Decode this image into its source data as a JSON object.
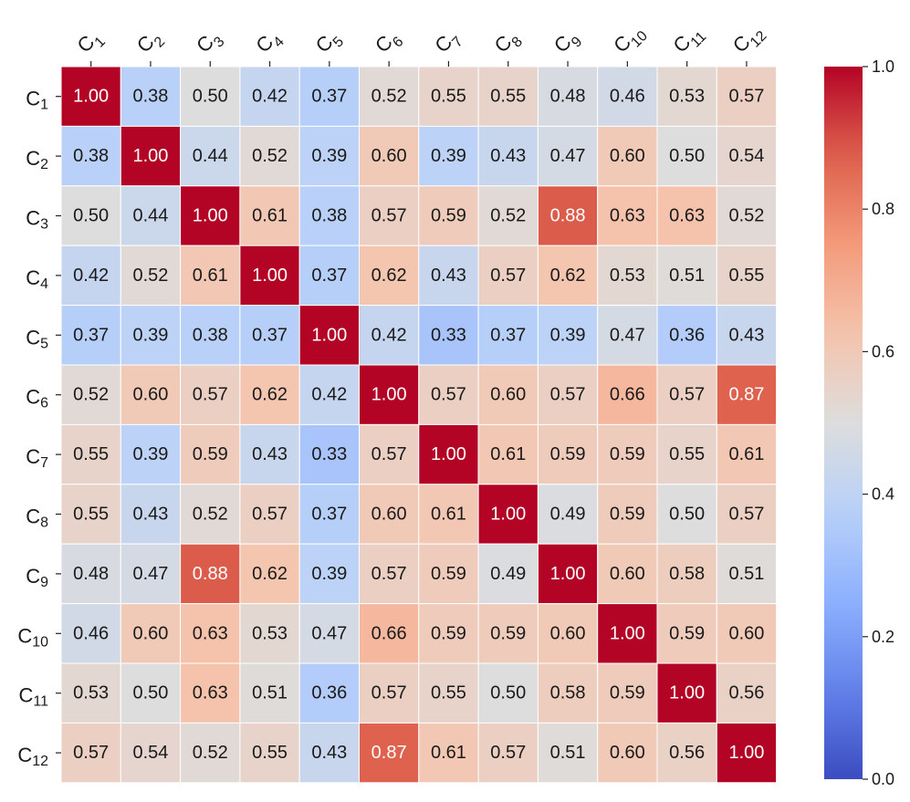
{
  "chart_data": {
    "type": "heatmap",
    "title": "",
    "row_labels": [
      "C1",
      "C2",
      "C3",
      "C4",
      "C5",
      "C6",
      "C7",
      "C8",
      "C9",
      "C10",
      "C11",
      "C12"
    ],
    "col_labels": [
      "C1",
      "C2",
      "C3",
      "C4",
      "C5",
      "C6",
      "C7",
      "C8",
      "C9",
      "C10",
      "C11",
      "C12"
    ],
    "label_prefix": "C",
    "label_subscripts": [
      "1",
      "2",
      "3",
      "4",
      "5",
      "6",
      "7",
      "8",
      "9",
      "10",
      "11",
      "12"
    ],
    "values": [
      [
        1.0,
        0.38,
        0.5,
        0.42,
        0.37,
        0.52,
        0.55,
        0.55,
        0.48,
        0.46,
        0.53,
        0.57
      ],
      [
        0.38,
        1.0,
        0.44,
        0.52,
        0.39,
        0.6,
        0.39,
        0.43,
        0.47,
        0.6,
        0.5,
        0.54
      ],
      [
        0.5,
        0.44,
        1.0,
        0.61,
        0.38,
        0.57,
        0.59,
        0.52,
        0.88,
        0.63,
        0.63,
        0.52
      ],
      [
        0.42,
        0.52,
        0.61,
        1.0,
        0.37,
        0.62,
        0.43,
        0.57,
        0.62,
        0.53,
        0.51,
        0.55
      ],
      [
        0.37,
        0.39,
        0.38,
        0.37,
        1.0,
        0.42,
        0.33,
        0.37,
        0.39,
        0.47,
        0.36,
        0.43
      ],
      [
        0.52,
        0.6,
        0.57,
        0.62,
        0.42,
        1.0,
        0.57,
        0.6,
        0.57,
        0.66,
        0.57,
        0.87
      ],
      [
        0.55,
        0.39,
        0.59,
        0.43,
        0.33,
        0.57,
        1.0,
        0.61,
        0.59,
        0.59,
        0.55,
        0.61
      ],
      [
        0.55,
        0.43,
        0.52,
        0.57,
        0.37,
        0.6,
        0.61,
        1.0,
        0.49,
        0.59,
        0.5,
        0.57
      ],
      [
        0.48,
        0.47,
        0.88,
        0.62,
        0.39,
        0.57,
        0.59,
        0.49,
        1.0,
        0.6,
        0.58,
        0.51
      ],
      [
        0.46,
        0.6,
        0.63,
        0.53,
        0.47,
        0.66,
        0.59,
        0.59,
        0.6,
        1.0,
        0.59,
        0.6
      ],
      [
        0.53,
        0.5,
        0.63,
        0.51,
        0.36,
        0.57,
        0.55,
        0.5,
        0.58,
        0.59,
        1.0,
        0.56
      ],
      [
        0.57,
        0.54,
        0.52,
        0.55,
        0.43,
        0.87,
        0.61,
        0.57,
        0.51,
        0.6,
        0.56,
        1.0
      ]
    ],
    "value_format_decimals": 2,
    "colormap": "coolwarm",
    "vmin": 0.0,
    "vmax": 1.0,
    "colorbar_ticks": [
      "0.0",
      "0.2",
      "0.4",
      "0.6",
      "0.8",
      "1.0"
    ],
    "x_tick_position": "top",
    "x_tick_rotation": "diagonal",
    "legend": "colorbar-right",
    "grid": false,
    "cell_separator_color": "#ffffff"
  }
}
